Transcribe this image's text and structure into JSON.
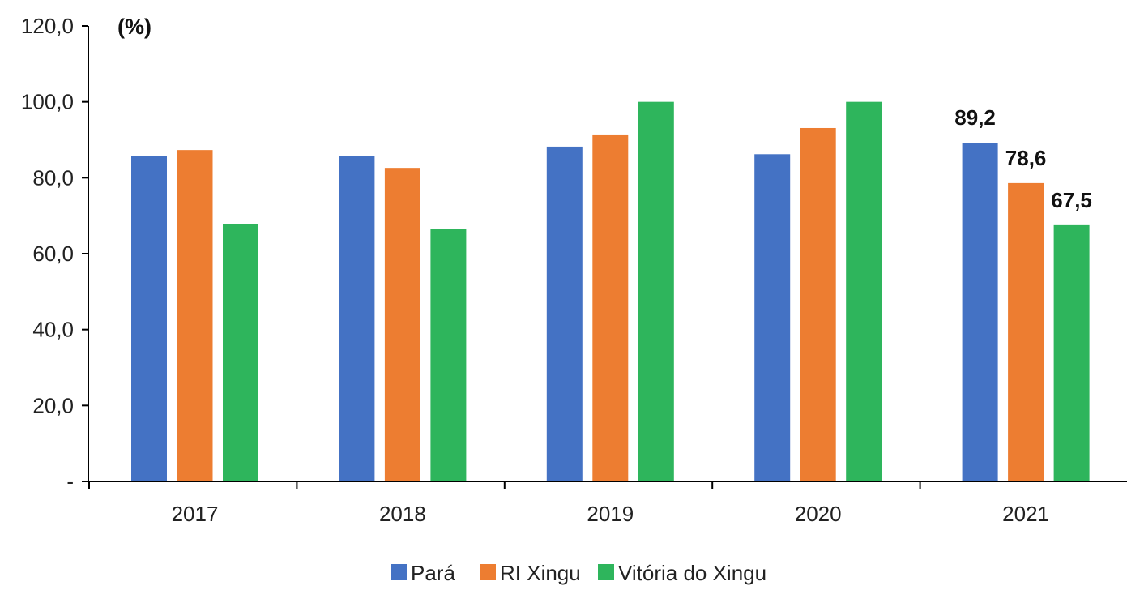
{
  "chart_data": {
    "type": "bar",
    "unit_label": "(%)",
    "categories": [
      "2017",
      "2018",
      "2019",
      "2020",
      "2021"
    ],
    "series": [
      {
        "name": "Pará",
        "color": "#4472C4",
        "values": [
          85.8,
          85.8,
          88.2,
          86.2,
          89.2
        ]
      },
      {
        "name": "RI Xingu",
        "color": "#ED7D31",
        "values": [
          87.3,
          82.6,
          91.4,
          93.1,
          78.6
        ]
      },
      {
        "name": "Vitória do Xingu",
        "color": "#2EB55C",
        "values": [
          67.9,
          66.6,
          100.0,
          100.0,
          67.5
        ]
      }
    ],
    "data_labels": [
      {
        "series": 0,
        "category": 4,
        "text": "89,2"
      },
      {
        "series": 1,
        "category": 4,
        "text": "78,6"
      },
      {
        "series": 2,
        "category": 4,
        "text": "67,5"
      }
    ],
    "y_ticks": [
      {
        "value": 0,
        "label": "-"
      },
      {
        "value": 20,
        "label": "20,0"
      },
      {
        "value": 40,
        "label": "40,0"
      },
      {
        "value": 60,
        "label": "60,0"
      },
      {
        "value": 80,
        "label": "80,0"
      },
      {
        "value": 100,
        "label": "100,0"
      },
      {
        "value": 120,
        "label": "120,0"
      }
    ],
    "ylim": [
      0,
      120
    ],
    "grid": false,
    "legend_position": "bottom-center"
  }
}
